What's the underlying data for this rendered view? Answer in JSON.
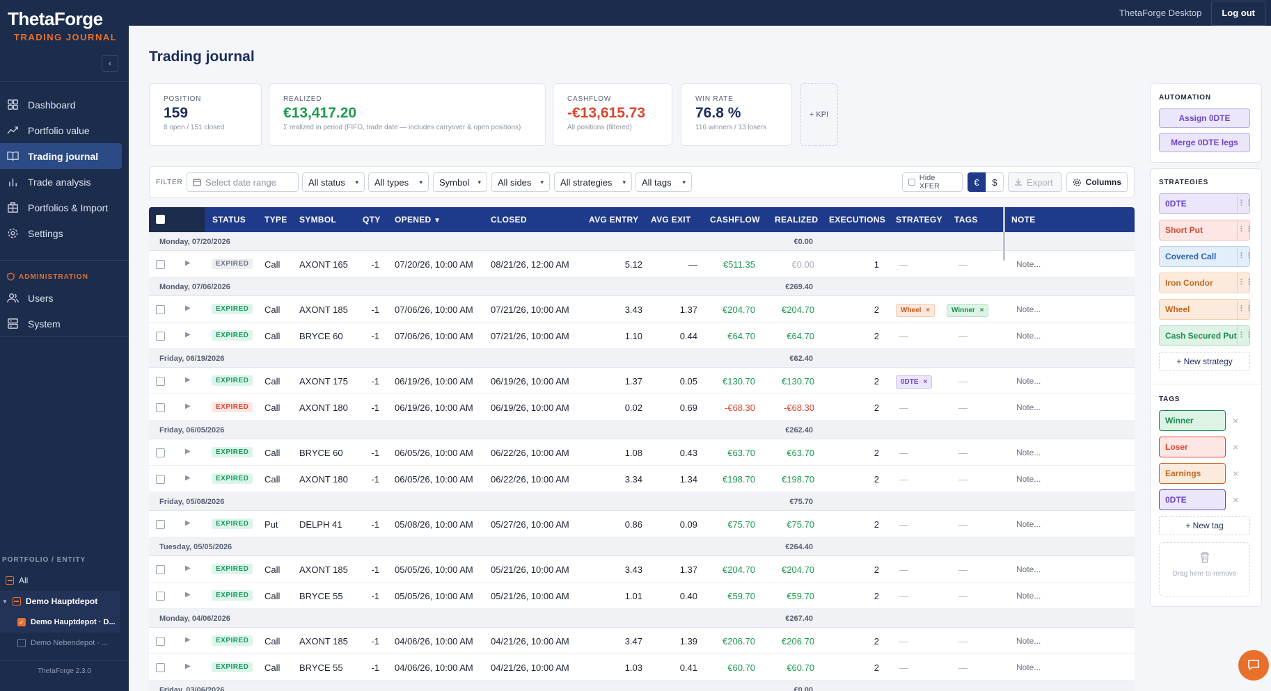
{
  "brand": {
    "name": "ThetaForge",
    "subtitle": "TRADING JOURNAL",
    "version": "ThetaForge 2.3.0"
  },
  "topbar": {
    "app_label": "ThetaForge Desktop",
    "logout": "Log out"
  },
  "nav": [
    {
      "label": "Dashboard",
      "icon": "dashboard-icon"
    },
    {
      "label": "Portfolio value",
      "icon": "trend-icon"
    },
    {
      "label": "Trading journal",
      "icon": "book-icon",
      "active": true
    },
    {
      "label": "Trade analysis",
      "icon": "bar-chart-icon"
    },
    {
      "label": "Portfolios & Import",
      "icon": "building-icon"
    },
    {
      "label": "Settings",
      "icon": "gear-icon"
    }
  ],
  "admin": {
    "heading": "ADMINISTRATION",
    "items": [
      {
        "label": "Users",
        "icon": "users-icon"
      },
      {
        "label": "System",
        "icon": "server-icon"
      }
    ]
  },
  "portfolio": {
    "heading": "PORTFOLIO / ENTITY",
    "all": "All",
    "group": "Demo Hauptdepot",
    "children": [
      "Demo Hauptdepot · D...",
      "Demo Nebendepot · ..."
    ]
  },
  "page": {
    "title": "Trading journal"
  },
  "kpis": [
    {
      "label": "POSITION",
      "value": "159",
      "sub": "8 open / 151 closed",
      "color": "#1c2c5c"
    },
    {
      "label": "REALIZED",
      "value": "€13,417.20",
      "sub": "Σ realized in period (FIFO, trade date — includes carryover & open positions)",
      "color": "#1c9a4e"
    },
    {
      "label": "CASHFLOW",
      "value": "-€13,615.73",
      "sub": "All positions (filtered)",
      "color": "#d9452f"
    },
    {
      "label": "WIN RATE",
      "value": "76.8 %",
      "sub": "116 winners / 13 losers",
      "color": "#1c2c5c"
    }
  ],
  "kpi_add": "+ KPI",
  "filter": {
    "label": "FILTER",
    "date_placeholder": "Select date range",
    "status": "All status",
    "types": "All types",
    "symbol": "Symbol",
    "sides": "All sides",
    "strategies": "All strategies",
    "tags": "All tags",
    "hide_xfer": "Hide XFER",
    "cur_eur": "€",
    "cur_usd": "$",
    "export": "Export",
    "columns": "Columns"
  },
  "columns": [
    "STATUS",
    "TYPE",
    "SYMBOL",
    "QTY",
    "OPENED",
    "CLOSED",
    "AVG ENTRY",
    "AVG EXIT",
    "CASHFLOW",
    "REALIZED",
    "EXECUTIONS",
    "STRATEGY",
    "TAGS",
    "NOTE"
  ],
  "groups": [
    {
      "date": "Monday, 07/20/2026",
      "sum": "€0.00",
      "rows": [
        {
          "status": "EXPIRED",
          "sc": "grey",
          "type": "Call",
          "symbol": "AXONT 165",
          "qty": "-1",
          "opened": "07/20/26, 10:00 AM",
          "closed": "08/21/26, 12:00 AM",
          "entry": "5.12",
          "exit": "—",
          "cash": "€511.35",
          "real": "€0.00",
          "rc": "mute",
          "exec": "1",
          "strategy": "—",
          "tags": "—",
          "note": "Note..."
        }
      ]
    },
    {
      "date": "Monday, 07/06/2026",
      "sum": "€269.40",
      "rows": [
        {
          "status": "EXPIRED",
          "sc": "green",
          "type": "Call",
          "symbol": "AXONT 185",
          "qty": "-1",
          "opened": "07/06/26, 10:00 AM",
          "closed": "07/21/26, 10:00 AM",
          "entry": "3.43",
          "exit": "1.37",
          "cash": "€204.70",
          "real": "€204.70",
          "rc": "pos",
          "exec": "2",
          "strategy": "Wheel",
          "tags": "Winner",
          "note": "Note..."
        },
        {
          "status": "EXPIRED",
          "sc": "green",
          "type": "Call",
          "symbol": "BRYCE 60",
          "qty": "-1",
          "opened": "07/06/26, 10:00 AM",
          "closed": "07/21/26, 10:00 AM",
          "entry": "1.10",
          "exit": "0.44",
          "cash": "€64.70",
          "real": "€64.70",
          "rc": "pos",
          "exec": "2",
          "strategy": "—",
          "tags": "—",
          "note": "Note..."
        }
      ]
    },
    {
      "date": "Friday, 06/19/2026",
      "sum": "€62.40",
      "rows": [
        {
          "status": "EXPIRED",
          "sc": "green",
          "type": "Call",
          "symbol": "AXONT 175",
          "qty": "-1",
          "opened": "06/19/26, 10:00 AM",
          "closed": "06/19/26, 10:00 AM",
          "entry": "1.37",
          "exit": "0.05",
          "cash": "€130.70",
          "real": "€130.70",
          "rc": "pos",
          "exec": "2",
          "strategy": "0DTE",
          "tags": "—",
          "note": "Note..."
        },
        {
          "status": "EXPIRED",
          "sc": "red",
          "type": "Call",
          "symbol": "AXONT 180",
          "qty": "-1",
          "opened": "06/19/26, 10:00 AM",
          "closed": "06/19/26, 10:00 AM",
          "entry": "0.02",
          "exit": "0.69",
          "cash": "-€68.30",
          "real": "-€68.30",
          "rc": "neg",
          "exec": "2",
          "strategy": "—",
          "tags": "—",
          "note": "Note..."
        }
      ]
    },
    {
      "date": "Friday, 06/05/2026",
      "sum": "€262.40",
      "rows": [
        {
          "status": "EXPIRED",
          "sc": "green",
          "type": "Call",
          "symbol": "BRYCE 60",
          "qty": "-1",
          "opened": "06/05/26, 10:00 AM",
          "closed": "06/22/26, 10:00 AM",
          "entry": "1.08",
          "exit": "0.43",
          "cash": "€63.70",
          "real": "€63.70",
          "rc": "pos",
          "exec": "2",
          "strategy": "—",
          "tags": "—",
          "note": "Note..."
        },
        {
          "status": "EXPIRED",
          "sc": "green",
          "type": "Call",
          "symbol": "AXONT 180",
          "qty": "-1",
          "opened": "06/05/26, 10:00 AM",
          "closed": "06/22/26, 10:00 AM",
          "entry": "3.34",
          "exit": "1.34",
          "cash": "€198.70",
          "real": "€198.70",
          "rc": "pos",
          "exec": "2",
          "strategy": "—",
          "tags": "—",
          "note": "Note..."
        }
      ]
    },
    {
      "date": "Friday, 05/08/2026",
      "sum": "€75.70",
      "rows": [
        {
          "status": "EXPIRED",
          "sc": "green",
          "type": "Put",
          "symbol": "DELPH 41",
          "qty": "-1",
          "opened": "05/08/26, 10:00 AM",
          "closed": "05/27/26, 10:00 AM",
          "entry": "0.86",
          "exit": "0.09",
          "cash": "€75.70",
          "real": "€75.70",
          "rc": "pos",
          "exec": "2",
          "strategy": "—",
          "tags": "—",
          "note": "Note..."
        }
      ]
    },
    {
      "date": "Tuesday, 05/05/2026",
      "sum": "€264.40",
      "rows": [
        {
          "status": "EXPIRED",
          "sc": "green",
          "type": "Call",
          "symbol": "AXONT 185",
          "qty": "-1",
          "opened": "05/05/26, 10:00 AM",
          "closed": "05/21/26, 10:00 AM",
          "entry": "3.43",
          "exit": "1.37",
          "cash": "€204.70",
          "real": "€204.70",
          "rc": "pos",
          "exec": "2",
          "strategy": "—",
          "tags": "—",
          "note": "Note..."
        },
        {
          "status": "EXPIRED",
          "sc": "green",
          "type": "Call",
          "symbol": "BRYCE 55",
          "qty": "-1",
          "opened": "05/05/26, 10:00 AM",
          "closed": "05/21/26, 10:00 AM",
          "entry": "1.01",
          "exit": "0.40",
          "cash": "€59.70",
          "real": "€59.70",
          "rc": "pos",
          "exec": "2",
          "strategy": "—",
          "tags": "—",
          "note": "Note..."
        }
      ]
    },
    {
      "date": "Monday, 04/06/2026",
      "sum": "€267.40",
      "rows": [
        {
          "status": "EXPIRED",
          "sc": "green",
          "type": "Call",
          "symbol": "AXONT 185",
          "qty": "-1",
          "opened": "04/06/26, 10:00 AM",
          "closed": "04/21/26, 10:00 AM",
          "entry": "3.47",
          "exit": "1.39",
          "cash": "€206.70",
          "real": "€206.70",
          "rc": "pos",
          "exec": "2",
          "strategy": "—",
          "tags": "—",
          "note": "Note..."
        },
        {
          "status": "EXPIRED",
          "sc": "green",
          "type": "Call",
          "symbol": "BRYCE 55",
          "qty": "-1",
          "opened": "04/06/26, 10:00 AM",
          "closed": "04/21/26, 10:00 AM",
          "entry": "1.03",
          "exit": "0.41",
          "cash": "€60.70",
          "real": "€60.70",
          "rc": "pos",
          "exec": "2",
          "strategy": "—",
          "tags": "—",
          "note": "Note..."
        }
      ]
    },
    {
      "date": "Friday, 03/06/2026",
      "sum": "€0.00",
      "rows": []
    }
  ],
  "automation": {
    "heading": "AUTOMATION",
    "btn1": "Assign 0DTE",
    "btn2": "Merge 0DTE legs"
  },
  "strategies": {
    "heading": "STRATEGIES",
    "items": [
      {
        "label": "0DTE",
        "style": "purple"
      },
      {
        "label": "Short Put",
        "style": "red"
      },
      {
        "label": "Covered Call",
        "style": "blue"
      },
      {
        "label": "Iron Condor",
        "style": "orange"
      },
      {
        "label": "Wheel",
        "style": "orange"
      },
      {
        "label": "Cash Secured Put",
        "style": "green"
      }
    ],
    "new": "+ New strategy"
  },
  "tags": {
    "heading": "TAGS",
    "items": [
      {
        "label": "Winner",
        "style": "green"
      },
      {
        "label": "Loser",
        "style": "red"
      },
      {
        "label": "Earnings",
        "style": "orange"
      },
      {
        "label": "0DTE",
        "style": "purple"
      }
    ],
    "new": "+ New tag",
    "drop": "Drag here to remove"
  }
}
